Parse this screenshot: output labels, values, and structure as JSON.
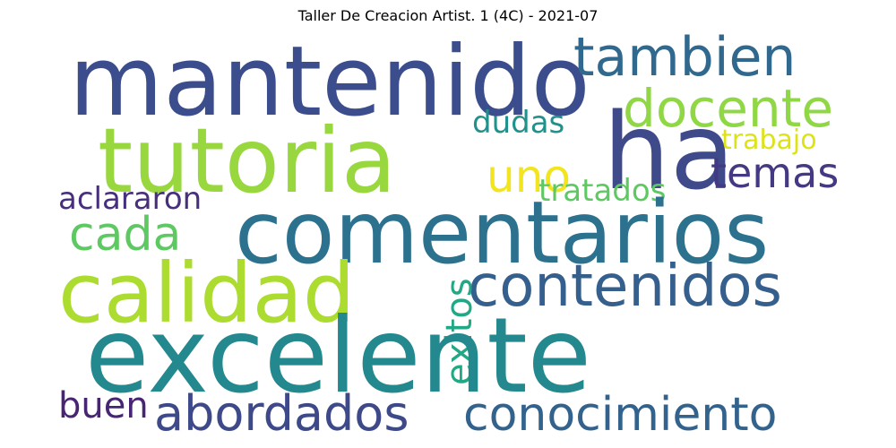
{
  "title": "Taller De Creacion Artist. 1 (4C) - 2021-07",
  "words": [
    {
      "text": "mantenido",
      "color": "#3b4d8c"
    },
    {
      "text": "ha",
      "color": "#3f4a8a"
    },
    {
      "text": "tambien",
      "color": "#31688e"
    },
    {
      "text": "docente",
      "color": "#8fd744"
    },
    {
      "text": "tutoria",
      "color": "#98d83e"
    },
    {
      "text": "uno",
      "color": "#f2e51d"
    },
    {
      "text": "trabajo",
      "color": "#dde318"
    },
    {
      "text": "dudas",
      "color": "#21918c"
    },
    {
      "text": "temas",
      "color": "#443983"
    },
    {
      "text": "aclararon",
      "color": "#472f7d"
    },
    {
      "text": "tratados",
      "color": "#5ec962"
    },
    {
      "text": "comentarios",
      "color": "#2c718e"
    },
    {
      "text": "cada",
      "color": "#5ec962"
    },
    {
      "text": "calidad",
      "color": "#addc30"
    },
    {
      "text": "contenidos",
      "color": "#355f8d"
    },
    {
      "text": "exitos",
      "color": "#22a884"
    },
    {
      "text": "excelente",
      "color": "#23898e"
    },
    {
      "text": "buen",
      "color": "#482475"
    },
    {
      "text": "abordados",
      "color": "#3e4989"
    },
    {
      "text": "conocimiento",
      "color": "#33638d"
    }
  ]
}
